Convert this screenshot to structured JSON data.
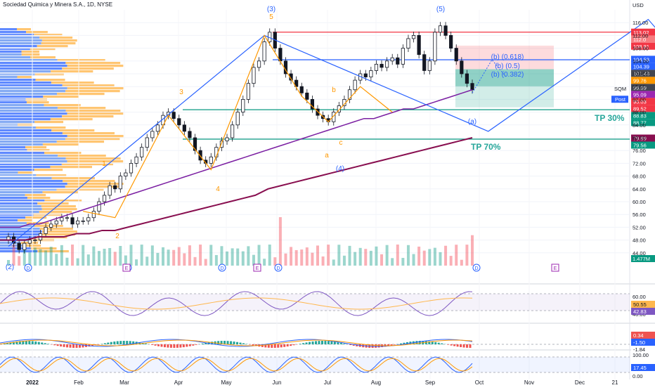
{
  "title": "Sociedad Quimica y Minera S.A., 1D, NYSE",
  "currency": "USD",
  "chart_data": {
    "type": "line",
    "ylim": [
      40,
      120
    ],
    "y_ticks": [
      44,
      48,
      52,
      56,
      60,
      64,
      68,
      72,
      76,
      80,
      84,
      88,
      92,
      96,
      100,
      104,
      108,
      112,
      116
    ],
    "x_tick_labels": [
      "2022",
      "Feb",
      "Mar",
      "Apr",
      "May",
      "Jun",
      "Jul",
      "Aug",
      "Sep",
      "Oct",
      "Nov",
      "Dec",
      "21"
    ],
    "close": [
      49,
      47,
      45,
      47,
      48,
      48,
      50,
      52,
      53,
      54,
      55,
      55,
      53,
      54,
      54,
      55,
      57,
      60,
      62,
      65,
      64,
      68,
      69,
      72,
      74,
      77,
      80,
      82,
      84,
      87,
      88,
      86,
      84,
      82,
      80,
      76,
      73,
      72,
      74,
      77,
      79,
      80,
      84,
      88,
      92,
      97,
      102,
      104,
      110,
      113,
      108,
      104,
      100,
      98,
      96,
      94,
      92,
      89,
      87,
      86,
      85,
      88,
      90,
      92,
      95,
      98,
      100,
      99,
      101,
      103,
      102,
      104,
      105,
      103,
      108,
      111,
      112,
      106,
      101,
      104,
      113,
      115,
      112,
      108,
      104,
      100,
      97,
      95
    ],
    "ma_purple": [
      52,
      52,
      52,
      53,
      53,
      54,
      55,
      56,
      57,
      58,
      59,
      60,
      61,
      62,
      63,
      64,
      65,
      66,
      67,
      68,
      69,
      70,
      71,
      72,
      73,
      74,
      75,
      76,
      77,
      78,
      79,
      80,
      81,
      82,
      83,
      84,
      85,
      86,
      86,
      87,
      88,
      89,
      89,
      90,
      91,
      92,
      93,
      94,
      95
    ],
    "ma_darkred": [
      48,
      48,
      48,
      49,
      49,
      49,
      50,
      50,
      51,
      51,
      52,
      53,
      54,
      55,
      56,
      57,
      58,
      59,
      60,
      61,
      62,
      64,
      65,
      66,
      67,
      68,
      69,
      70,
      71,
      72,
      73,
      74,
      75,
      76,
      77,
      78,
      79,
      80
    ],
    "wave_points_blue": [
      [
        0,
        46
      ],
      [
        48,
        112
      ],
      [
        90,
        82
      ],
      [
        120,
        117
      ],
      [
        132,
        94
      ]
    ],
    "wave_points_orange": [
      [
        14,
        57
      ],
      [
        20,
        55
      ],
      [
        30,
        87
      ],
      [
        38,
        70
      ],
      [
        48,
        112
      ],
      [
        55,
        93
      ],
      [
        60,
        85
      ],
      [
        66,
        96
      ],
      [
        72,
        88
      ]
    ],
    "horizontal_levels": [
      {
        "value": 113.02,
        "color": "#f23645",
        "label": "113.02"
      },
      {
        "value": 104.39,
        "color": "#2962ff",
        "label": "104.39"
      },
      {
        "value": 88.77,
        "color": "#089981",
        "label": "88.77"
      },
      {
        "value": 79.56,
        "color": "#089981",
        "label": "79.56"
      }
    ],
    "price_labels": [
      {
        "value": 113.02,
        "label": "113.02",
        "bg": "#f23645"
      },
      {
        "value": 112.0,
        "label": "112.0",
        "bg": "#f77c80"
      },
      {
        "value": 108.81,
        "label": "108.81",
        "bg": "#f23645"
      },
      {
        "value": 104.53,
        "label": "104.53",
        "bg": "#2962ff"
      },
      {
        "value": 104.39,
        "label": "104.39",
        "bg": "#2962ff"
      },
      {
        "value": 101.43,
        "label": "101.43",
        "bg": "#434651"
      },
      {
        "value": 99.76,
        "label": "99.76",
        "bg": "#ff9800"
      },
      {
        "value": 96.09,
        "label": "96.09",
        "bg": "#434651"
      },
      {
        "value": 95.09,
        "label": "95.09",
        "bg": "#9c27b0"
      },
      {
        "value": 95.03,
        "label": "95.03",
        "bg": "#f23645"
      },
      {
        "value": 89.52,
        "label": "89.52",
        "bg": "#f23645"
      },
      {
        "value": 88.83,
        "label": "88.83",
        "bg": "#089981"
      },
      {
        "value": 88.77,
        "label": "88.77",
        "bg": "#089981"
      },
      {
        "value": 79.89,
        "label": "79.89",
        "bg": "#880e4f"
      },
      {
        "value": 79.56,
        "label": "79.56",
        "bg": "#089981"
      }
    ],
    "sqm_tag": {
      "value": 95.33,
      "symbol": "SQM",
      "price": "95.33",
      "post_label": "Post",
      "post_price": "95.03"
    },
    "wave_labels_blue": [
      "(2)",
      "(3)",
      "(4)",
      "(5)",
      "(a)",
      "(b) (0.618)",
      "(b) (0.5)",
      "(b) (0.382)"
    ],
    "wave_labels_orange": [
      "1",
      "2",
      "3",
      "4",
      "5",
      "a",
      "b",
      "c"
    ],
    "targets": [
      "TP 30%",
      "TP 70%"
    ],
    "volume_label": "1.477M",
    "event_markers": [
      "D",
      "E"
    ],
    "rsi_scale": [
      "60.00",
      "40.00"
    ],
    "rsi_values": [
      "50.55",
      "42.83"
    ],
    "macd_values": [
      "0.34",
      "-1.50",
      "-1.84"
    ],
    "stoch_scale": [
      "100.00",
      "0.00"
    ],
    "stoch_value": "17.45"
  },
  "colors": {
    "up": "#089981",
    "down": "#f23645",
    "blue": "#2962ff",
    "orange": "#ff9800",
    "purple": "#7b1fa2",
    "darkred": "#880e4f",
    "teal": "#26a69a"
  }
}
